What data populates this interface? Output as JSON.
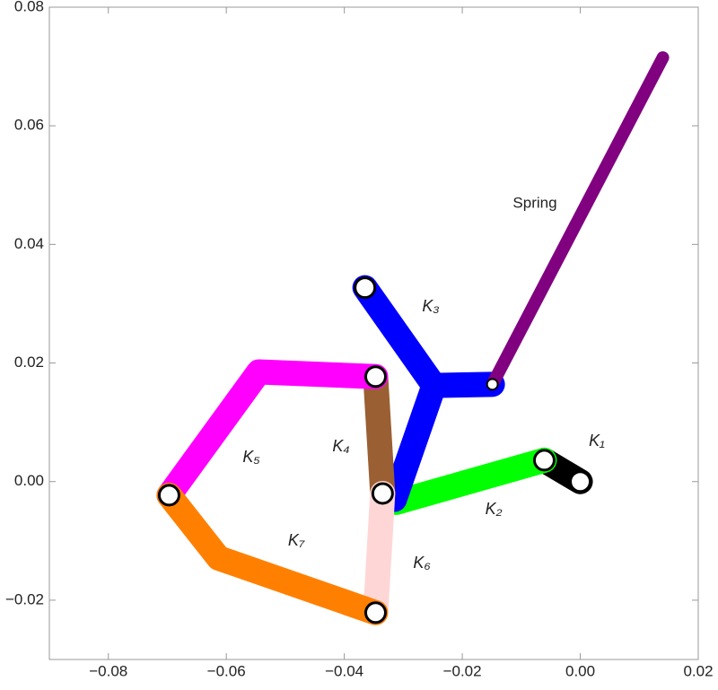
{
  "chart_data": {
    "type": "linkage",
    "xlim": [
      -0.09,
      0.02
    ],
    "ylim": [
      -0.03,
      0.08
    ],
    "xticks": [
      {
        "value": -0.08,
        "label": "−0.08"
      },
      {
        "value": -0.06,
        "label": "−0.06"
      },
      {
        "value": -0.04,
        "label": "−0.04"
      },
      {
        "value": -0.02,
        "label": "−0.02"
      },
      {
        "value": 0,
        "label": "0.00"
      },
      {
        "value": 0.02,
        "label": "0.02"
      }
    ],
    "yticks": [
      {
        "value": -0.02,
        "label": "−0.02"
      },
      {
        "value": 0,
        "label": "0.00"
      },
      {
        "value": 0.02,
        "label": "0.02"
      },
      {
        "value": 0.04,
        "label": "0.04"
      },
      {
        "value": 0.06,
        "label": "0.06"
      },
      {
        "value": 0.08,
        "label": "0.08"
      }
    ],
    "series": [
      {
        "name": "K₁",
        "color": "#000000",
        "x": [
          -0.0061,
          0
        ],
        "y": [
          0.0036,
          0
        ]
      },
      {
        "name": "K₂",
        "color": "#00ff00",
        "x": [
          -0.0312,
          -0.0061
        ],
        "y": [
          -0.0035,
          0.0036
        ]
      },
      {
        "name": "K₃",
        "color": "#0000ff",
        "x": [
          -0.0365,
          -0.0248,
          -0.0149,
          null,
          -0.0248,
          -0.0315
        ],
        "y": [
          0.0327,
          0.0162,
          0.0164,
          null,
          0.0162,
          -0.003
        ]
      },
      {
        "name": "K₄",
        "color": "#9a5f32",
        "x": [
          -0.0347,
          -0.0335
        ],
        "y": [
          0.0177,
          -0.002
        ]
      },
      {
        "name": "K₅",
        "color": "#ff00ff",
        "x": [
          -0.0347,
          -0.0545,
          -0.0697
        ],
        "y": [
          0.0177,
          0.0185,
          -0.0023
        ]
      },
      {
        "name": "K₆",
        "color": "#ffd6d6",
        "x": [
          -0.0335,
          -0.0347
        ],
        "y": [
          -0.002,
          -0.0221
        ]
      },
      {
        "name": "K₇",
        "color": "#ff8000",
        "x": [
          -0.0697,
          -0.0613,
          -0.0347
        ],
        "y": [
          -0.0023,
          -0.0129,
          -0.0221
        ]
      },
      {
        "name": "Spring",
        "color": "#800080",
        "x": [
          -0.0149,
          0.014
        ],
        "y": [
          0.0164,
          0.0715
        ]
      }
    ],
    "joints": {
      "x": [
        -0.0365,
        -0.0347,
        -0.0697,
        -0.0335,
        -0.0347,
        -0.0061,
        0
      ],
      "y": [
        0.0327,
        0.0177,
        -0.0023,
        -0.002,
        -0.0221,
        0.0036,
        0
      ]
    },
    "pivot": {
      "x": -0.0149,
      "y": 0.0164
    }
  }
}
